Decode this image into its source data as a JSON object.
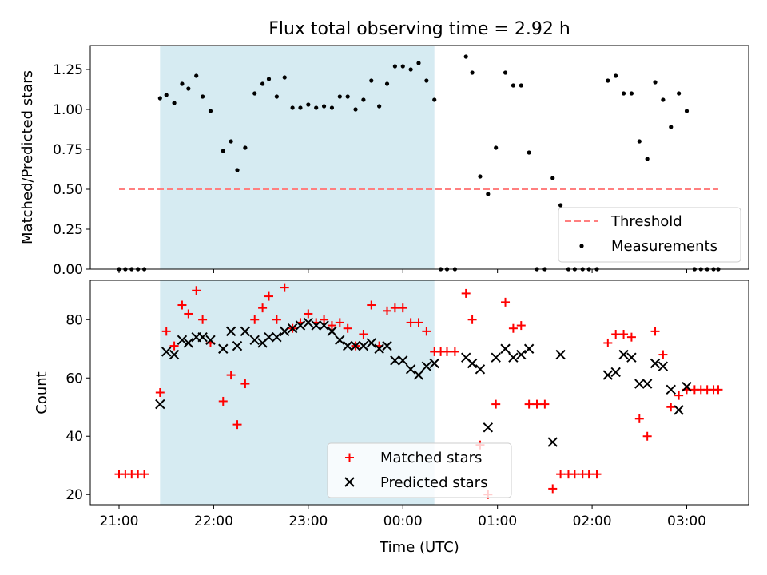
{
  "title": "Flux total observing time = 2.92 h",
  "chart_data": [
    {
      "type": "scatter",
      "panel": "top",
      "xlabel": "",
      "ylabel": "Matched/Predicted stars",
      "ylim": [
        0,
        1.4
      ],
      "yticks": [
        "0.00",
        "0.25",
        "0.50",
        "0.75",
        "1.00",
        "1.25"
      ],
      "grid": false,
      "legend_position": "lower-right",
      "shaded_interval": [
        "21:26",
        "00:20"
      ],
      "shaded_color": "#add8e6",
      "threshold": {
        "name": "Threshold",
        "value": 0.5,
        "x_range": [
          "21:00",
          "03:20"
        ],
        "color": "#ff7f7f"
      },
      "series": [
        {
          "name": "Measurements",
          "color": "#000000",
          "points": [
            [
              "21:00",
              0.0
            ],
            [
              "21:04",
              0.0
            ],
            [
              "21:08",
              0.0
            ],
            [
              "21:12",
              0.0
            ],
            [
              "21:16",
              0.0
            ],
            [
              "21:26",
              1.07
            ],
            [
              "21:30",
              1.09
            ],
            [
              "21:35",
              1.04
            ],
            [
              "21:40",
              1.16
            ],
            [
              "21:44",
              1.13
            ],
            [
              "21:49",
              1.21
            ],
            [
              "21:53",
              1.08
            ],
            [
              "21:58",
              0.99
            ],
            [
              "22:06",
              0.74
            ],
            [
              "22:11",
              0.8
            ],
            [
              "22:15",
              0.62
            ],
            [
              "22:20",
              0.76
            ],
            [
              "22:26",
              1.1
            ],
            [
              "22:31",
              1.16
            ],
            [
              "22:35",
              1.19
            ],
            [
              "22:40",
              1.08
            ],
            [
              "22:45",
              1.2
            ],
            [
              "22:50",
              1.01
            ],
            [
              "22:55",
              1.01
            ],
            [
              "23:00",
              1.03
            ],
            [
              "23:05",
              1.01
            ],
            [
              "23:10",
              1.02
            ],
            [
              "23:15",
              1.01
            ],
            [
              "23:20",
              1.08
            ],
            [
              "23:25",
              1.08
            ],
            [
              "23:30",
              1.0
            ],
            [
              "23:35",
              1.06
            ],
            [
              "23:40",
              1.18
            ],
            [
              "23:45",
              1.02
            ],
            [
              "23:50",
              1.16
            ],
            [
              "23:55",
              1.27
            ],
            [
              "00:00",
              1.27
            ],
            [
              "00:05",
              1.25
            ],
            [
              "00:10",
              1.29
            ],
            [
              "00:15",
              1.18
            ],
            [
              "00:20",
              1.06
            ],
            [
              "00:24",
              0.0
            ],
            [
              "00:28",
              0.0
            ],
            [
              "00:33",
              0.0
            ],
            [
              "00:40",
              1.33
            ],
            [
              "00:44",
              1.23
            ],
            [
              "00:49",
              0.58
            ],
            [
              "00:54",
              0.47
            ],
            [
              "00:59",
              0.76
            ],
            [
              "01:05",
              1.23
            ],
            [
              "01:10",
              1.15
            ],
            [
              "01:15",
              1.15
            ],
            [
              "01:20",
              0.73
            ],
            [
              "01:25",
              0.0
            ],
            [
              "01:30",
              0.0
            ],
            [
              "01:35",
              0.57
            ],
            [
              "01:40",
              0.4
            ],
            [
              "01:45",
              0.0
            ],
            [
              "01:49",
              0.0
            ],
            [
              "01:54",
              0.0
            ],
            [
              "01:58",
              0.0
            ],
            [
              "02:03",
              0.0
            ],
            [
              "02:10",
              1.18
            ],
            [
              "02:15",
              1.21
            ],
            [
              "02:20",
              1.1
            ],
            [
              "02:25",
              1.1
            ],
            [
              "02:30",
              0.8
            ],
            [
              "02:35",
              0.69
            ],
            [
              "02:40",
              1.17
            ],
            [
              "02:45",
              1.06
            ],
            [
              "02:50",
              0.89
            ],
            [
              "02:55",
              1.1
            ],
            [
              "03:00",
              0.99
            ],
            [
              "03:05",
              0.0
            ],
            [
              "03:09",
              0.0
            ],
            [
              "03:13",
              0.0
            ],
            [
              "03:17",
              0.0
            ],
            [
              "03:20",
              0.0
            ]
          ]
        }
      ]
    },
    {
      "type": "scatter",
      "panel": "bottom",
      "xlabel": "Time (UTC)",
      "ylabel": "Count",
      "xticks": [
        "21:00",
        "22:00",
        "23:00",
        "00:00",
        "01:00",
        "02:00",
        "03:00"
      ],
      "yticks": [
        "20",
        "40",
        "60",
        "80"
      ],
      "ylim": [
        16.5,
        93.5
      ],
      "grid": false,
      "legend_position": "lower-center",
      "shaded_interval": [
        "21:26",
        "00:20"
      ],
      "series": [
        {
          "name": "Matched stars",
          "marker": "plus",
          "color": "#ff0000",
          "points": [
            [
              "21:00",
              27
            ],
            [
              "21:04",
              27
            ],
            [
              "21:08",
              27
            ],
            [
              "21:12",
              27
            ],
            [
              "21:16",
              27
            ],
            [
              "21:26",
              55
            ],
            [
              "21:30",
              76
            ],
            [
              "21:35",
              71
            ],
            [
              "21:40",
              85
            ],
            [
              "21:44",
              82
            ],
            [
              "21:49",
              90
            ],
            [
              "21:53",
              80
            ],
            [
              "21:58",
              72
            ],
            [
              "22:06",
              52
            ],
            [
              "22:11",
              61
            ],
            [
              "22:15",
              44
            ],
            [
              "22:20",
              58
            ],
            [
              "22:26",
              80
            ],
            [
              "22:31",
              84
            ],
            [
              "22:35",
              88
            ],
            [
              "22:40",
              80
            ],
            [
              "22:45",
              91
            ],
            [
              "22:50",
              77
            ],
            [
              "22:55",
              79
            ],
            [
              "23:00",
              82
            ],
            [
              "23:05",
              79
            ],
            [
              "23:10",
              80
            ],
            [
              "23:15",
              78
            ],
            [
              "23:20",
              79
            ],
            [
              "23:25",
              77
            ],
            [
              "23:30",
              71
            ],
            [
              "23:35",
              75
            ],
            [
              "23:40",
              85
            ],
            [
              "23:45",
              71
            ],
            [
              "23:50",
              83
            ],
            [
              "23:55",
              84
            ],
            [
              "00:00",
              84
            ],
            [
              "00:05",
              79
            ],
            [
              "00:10",
              79
            ],
            [
              "00:15",
              76
            ],
            [
              "00:20",
              69
            ],
            [
              "00:24",
              69
            ],
            [
              "00:28",
              69
            ],
            [
              "00:33",
              69
            ],
            [
              "00:40",
              89
            ],
            [
              "00:44",
              80
            ],
            [
              "00:49",
              37
            ],
            [
              "00:54",
              20
            ],
            [
              "00:59",
              51
            ],
            [
              "01:05",
              86
            ],
            [
              "01:10",
              77
            ],
            [
              "01:15",
              78
            ],
            [
              "01:20",
              51
            ],
            [
              "01:25",
              51
            ],
            [
              "01:30",
              51
            ],
            [
              "01:35",
              22
            ],
            [
              "01:40",
              27
            ],
            [
              "01:45",
              27
            ],
            [
              "01:49",
              27
            ],
            [
              "01:54",
              27
            ],
            [
              "01:58",
              27
            ],
            [
              "02:03",
              27
            ],
            [
              "02:10",
              72
            ],
            [
              "02:15",
              75
            ],
            [
              "02:20",
              75
            ],
            [
              "02:25",
              74
            ],
            [
              "02:30",
              46
            ],
            [
              "02:35",
              40
            ],
            [
              "02:40",
              76
            ],
            [
              "02:45",
              68
            ],
            [
              "02:50",
              50
            ],
            [
              "02:55",
              54
            ],
            [
              "03:00",
              56
            ],
            [
              "03:05",
              56
            ],
            [
              "03:09",
              56
            ],
            [
              "03:13",
              56
            ],
            [
              "03:17",
              56
            ],
            [
              "03:20",
              56
            ]
          ]
        },
        {
          "name": "Predicted stars",
          "marker": "x",
          "color": "#000000",
          "points": [
            [
              "21:26",
              51
            ],
            [
              "21:30",
              69
            ],
            [
              "21:35",
              68
            ],
            [
              "21:40",
              73
            ],
            [
              "21:44",
              72
            ],
            [
              "21:49",
              74
            ],
            [
              "21:53",
              74
            ],
            [
              "21:58",
              73
            ],
            [
              "22:06",
              70
            ],
            [
              "22:11",
              76
            ],
            [
              "22:15",
              71
            ],
            [
              "22:20",
              76
            ],
            [
              "22:26",
              73
            ],
            [
              "22:31",
              72
            ],
            [
              "22:35",
              74
            ],
            [
              "22:40",
              74
            ],
            [
              "22:45",
              76
            ],
            [
              "22:50",
              77
            ],
            [
              "22:55",
              78
            ],
            [
              "23:00",
              79
            ],
            [
              "23:05",
              78
            ],
            [
              "23:10",
              78
            ],
            [
              "23:15",
              76
            ],
            [
              "23:20",
              73
            ],
            [
              "23:25",
              71
            ],
            [
              "23:30",
              71
            ],
            [
              "23:35",
              71
            ],
            [
              "23:40",
              72
            ],
            [
              "23:45",
              70
            ],
            [
              "23:50",
              71
            ],
            [
              "23:55",
              66
            ],
            [
              "00:00",
              66
            ],
            [
              "00:05",
              63
            ],
            [
              "00:10",
              61
            ],
            [
              "00:15",
              64
            ],
            [
              "00:20",
              65
            ],
            [
              "00:40",
              67
            ],
            [
              "00:44",
              65
            ],
            [
              "00:49",
              63
            ],
            [
              "00:54",
              43
            ],
            [
              "00:59",
              67
            ],
            [
              "01:05",
              70
            ],
            [
              "01:10",
              67
            ],
            [
              "01:15",
              68
            ],
            [
              "01:20",
              70
            ],
            [
              "01:35",
              38
            ],
            [
              "01:40",
              68
            ],
            [
              "02:10",
              61
            ],
            [
              "02:15",
              62
            ],
            [
              "02:20",
              68
            ],
            [
              "02:25",
              67
            ],
            [
              "02:30",
              58
            ],
            [
              "02:35",
              58
            ],
            [
              "02:40",
              65
            ],
            [
              "02:45",
              64
            ],
            [
              "02:50",
              56
            ],
            [
              "02:55",
              49
            ],
            [
              "03:00",
              57
            ]
          ]
        }
      ]
    }
  ]
}
